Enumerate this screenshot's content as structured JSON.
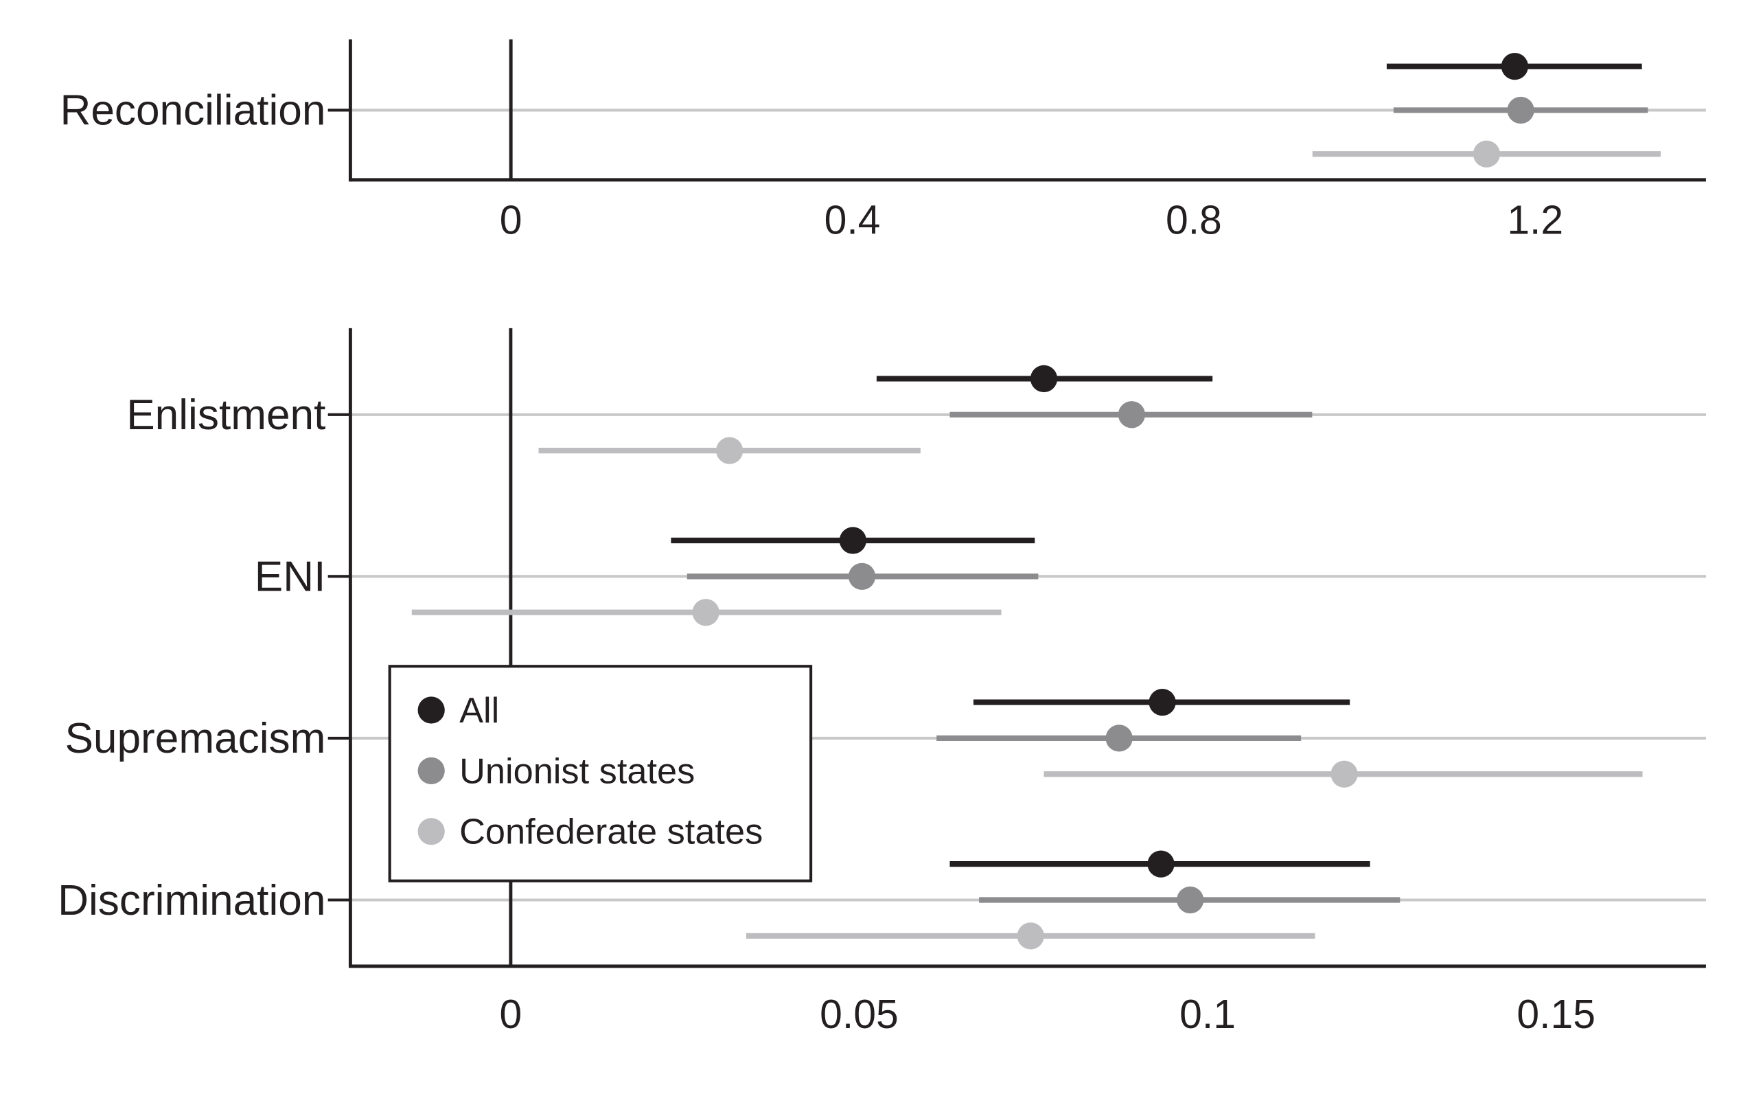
{
  "chart_data": [
    {
      "type": "dot-whisker",
      "panel": "top",
      "xlim": [
        -0.188,
        1.4
      ],
      "xticks": [
        0,
        0.4,
        0.8,
        1.2
      ],
      "xtick_labels": [
        "0",
        "0.4",
        "0.8",
        "1.2"
      ],
      "categories": [
        "Reconciliation"
      ],
      "series": [
        {
          "name": "All",
          "color": "#231f20",
          "estimates": [
            1.176
          ],
          "ci_low": [
            1.026
          ],
          "ci_high": [
            1.325
          ]
        },
        {
          "name": "Unionist states",
          "color": "#8c8c8e",
          "estimates": [
            1.183
          ],
          "ci_low": [
            1.034
          ],
          "ci_high": [
            1.332
          ]
        },
        {
          "name": "Confederate states",
          "color": "#bdbdbf",
          "estimates": [
            1.143
          ],
          "ci_low": [
            0.939
          ],
          "ci_high": [
            1.347
          ]
        }
      ]
    },
    {
      "type": "dot-whisker",
      "panel": "bottom",
      "xlim": [
        -0.023,
        0.1715
      ],
      "xticks": [
        0,
        0.05,
        0.1,
        0.15
      ],
      "xtick_labels": [
        "0",
        "0.05",
        "0.1",
        "0.15"
      ],
      "categories": [
        "Enlistment",
        "ENI",
        "Supremacism",
        "Discrimination"
      ],
      "series": [
        {
          "name": "All",
          "color": "#231f20",
          "estimates": [
            0.0765,
            0.0491,
            0.0935,
            0.0933
          ],
          "ci_low": [
            0.0525,
            0.023,
            0.0664,
            0.063
          ],
          "ci_high": [
            0.1007,
            0.0752,
            0.1204,
            0.1233
          ]
        },
        {
          "name": "Unionist states",
          "color": "#8c8c8e",
          "estimates": [
            0.0891,
            0.0504,
            0.0873,
            0.0975
          ],
          "ci_low": [
            0.063,
            0.0253,
            0.0611,
            0.0672
          ],
          "ci_high": [
            0.115,
            0.0757,
            0.1134,
            0.1276
          ]
        },
        {
          "name": "Confederate states",
          "color": "#bdbdbf",
          "estimates": [
            0.0314,
            0.028,
            0.1196,
            0.0746
          ],
          "ci_low": [
            0.004,
            -0.0142,
            0.0765,
            0.0338
          ],
          "ci_high": [
            0.0588,
            0.0704,
            0.1624,
            0.1154
          ]
        }
      ]
    }
  ],
  "legend": {
    "placement": "bottom-left",
    "items": [
      "All",
      "Unionist states",
      "Confederate states"
    ]
  }
}
